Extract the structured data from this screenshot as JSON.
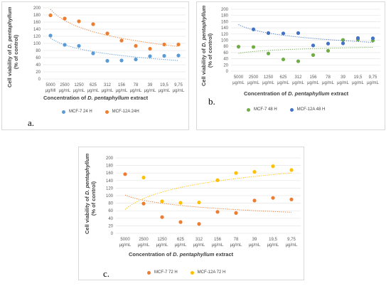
{
  "ylabel_prefix": "Cell viability of ",
  "ylabel_species": "D. pentaphyllum",
  "ylabel_line2": "(% of control)",
  "xlabel_prefix": "Concentration of ",
  "xlabel_species": "D. pentaphyllum",
  "xlabel_suffix": " extract",
  "chart_data": [
    {
      "type": "scatter",
      "panel": "a.",
      "categories": [
        "5000 μg/Ml",
        "2500 μg/mL",
        "1250 μg/mL",
        "625 μg/mL",
        "312 μg/mL",
        "156 μg/mL",
        "78 μg/mL",
        "39 μg/mL",
        "19,5 μg/mL",
        "9,75 μg/mL"
      ],
      "ylim": [
        0,
        200
      ],
      "yticks": [
        0,
        20,
        40,
        60,
        80,
        100,
        120,
        140,
        160,
        180,
        200
      ],
      "series": [
        {
          "name": "MCF-7  24 H",
          "color": "#5b9bd5",
          "values": [
            122,
            96,
            93,
            72,
            51,
            52,
            55,
            64,
            65,
            66
          ]
        },
        {
          "name": "MCF-12A  24H",
          "color": "#ed7d31",
          "values": [
            179,
            170,
            162,
            154,
            128,
            108,
            93,
            85,
            97,
            97
          ]
        }
      ]
    },
    {
      "type": "scatter",
      "panel": "b.",
      "categories": [
        "5000 μg/mL",
        "2500 μg/mL",
        "1250 μg/mL",
        "625 μg/mL",
        "312 μg/mL",
        "156 μg/mL",
        "78 μg/mL",
        "39 μg/mL",
        "19,5 μg/mL",
        "9,75 μg/mL"
      ],
      "ylim": [
        0,
        200
      ],
      "yticks": [
        0,
        20,
        40,
        60,
        80,
        100,
        120,
        140,
        160,
        180,
        200
      ],
      "series": [
        {
          "name": "MCF-7 48 H",
          "color": "#70ad47",
          "values": [
            79,
            78,
            57,
            38,
            32,
            52,
            66,
            101,
            102,
            99
          ]
        },
        {
          "name": "MCF-12A 48 H",
          "color": "#4472c4",
          "values": [
            null,
            135,
            123,
            122,
            123,
            83,
            89,
            90,
            107,
            106
          ]
        }
      ]
    },
    {
      "type": "scatter",
      "panel": "c.",
      "categories": [
        "5000 μg/mL",
        "2500 μg/mL",
        "1250 μg/mL",
        "625 μg/mL",
        "312 μg/mL",
        "156 μg/mL",
        "78 μg/mL",
        "39 μg/mL",
        "19,5 μg/mL",
        "9,75 μg/mL"
      ],
      "ylim": [
        0,
        200
      ],
      "yticks": [
        0,
        20,
        40,
        60,
        80,
        100,
        120,
        140,
        160,
        180,
        200
      ],
      "series": [
        {
          "name": "MCF-7 72 H",
          "color": "#ed7d31",
          "values": [
            157,
            79,
            43,
            30,
            25,
            57,
            54,
            87,
            94,
            90
          ]
        },
        {
          "name": "MCF-12A 72 H",
          "color": "#ffc000",
          "values": [
            null,
            148,
            85,
            81,
            82,
            141,
            160,
            163,
            178,
            168
          ]
        }
      ]
    }
  ]
}
